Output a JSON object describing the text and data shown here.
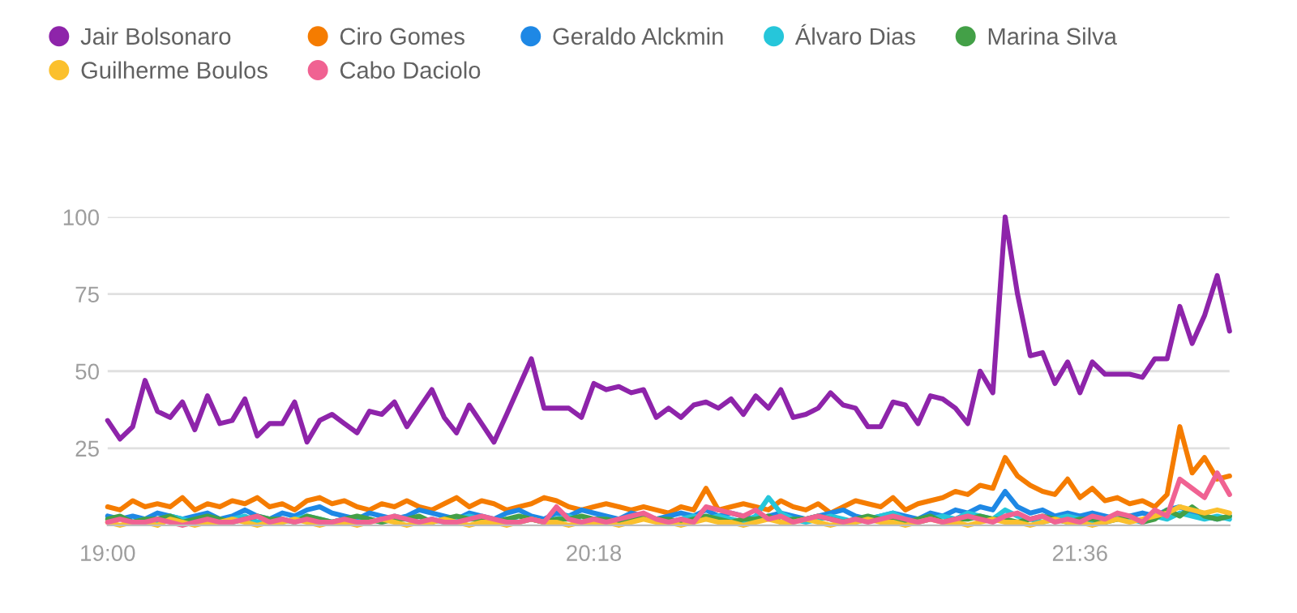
{
  "chart_data": {
    "type": "line",
    "x": [
      19,
      19.033,
      19.067,
      19.1,
      19.133,
      19.167,
      19.2,
      19.233,
      19.267,
      19.3,
      19.333,
      19.367,
      19.4,
      19.433,
      19.467,
      19.5,
      19.533,
      19.567,
      19.6,
      19.633,
      19.667,
      19.7,
      19.733,
      19.767,
      19.8,
      19.833,
      19.867,
      19.9,
      19.933,
      19.967,
      20,
      20.033,
      20.067,
      20.1,
      20.133,
      20.167,
      20.2,
      20.233,
      20.267,
      20.3,
      20.333,
      20.367,
      20.4,
      20.433,
      20.467,
      20.5,
      20.533,
      20.567,
      20.6,
      20.633,
      20.667,
      20.7,
      20.733,
      20.767,
      20.8,
      20.833,
      20.867,
      20.9,
      20.933,
      20.967,
      21,
      21.033,
      21.067,
      21.1,
      21.133,
      21.167,
      21.2,
      21.233,
      21.267,
      21.3,
      21.333,
      21.367,
      21.4,
      21.433,
      21.467,
      21.5,
      21.533,
      21.567,
      21.6,
      21.633,
      21.667,
      21.7,
      21.733,
      21.767,
      21.8,
      21.833,
      21.867,
      21.9,
      21.933,
      21.967,
      22
    ],
    "series": [
      {
        "name": "Jair Bolsonaro",
        "color": "#8e24aa",
        "values": [
          34,
          28,
          32,
          47,
          37,
          35,
          40,
          31,
          42,
          33,
          34,
          41,
          29,
          33,
          33,
          40,
          27,
          34,
          36,
          33,
          30,
          37,
          36,
          40,
          32,
          38,
          44,
          35,
          30,
          39,
          33,
          27,
          36,
          45,
          54,
          38,
          38,
          38,
          35,
          46,
          44,
          45,
          43,
          44,
          35,
          38,
          35,
          39,
          40,
          38,
          41,
          36,
          42,
          38,
          44,
          35,
          36,
          38,
          43,
          39,
          38,
          32,
          32,
          40,
          39,
          33,
          42,
          41,
          38,
          33,
          50,
          43,
          100,
          75,
          55,
          56,
          46,
          53,
          43,
          53,
          49,
          49,
          49,
          48,
          54,
          54,
          71,
          59,
          68,
          81,
          63
        ]
      },
      {
        "name": "Ciro Gomes",
        "color": "#f57c00",
        "values": [
          6,
          5,
          8,
          6,
          7,
          6,
          9,
          5,
          7,
          6,
          8,
          7,
          9,
          6,
          7,
          5,
          8,
          9,
          7,
          8,
          6,
          5,
          7,
          6,
          8,
          6,
          5,
          7,
          9,
          6,
          8,
          7,
          5,
          6,
          7,
          9,
          8,
          6,
          5,
          6,
          7,
          6,
          5,
          6,
          5,
          4,
          6,
          5,
          12,
          5,
          6,
          7,
          6,
          5,
          8,
          6,
          5,
          7,
          4,
          6,
          8,
          7,
          6,
          9,
          5,
          7,
          8,
          9,
          11,
          10,
          13,
          12,
          22,
          16,
          13,
          11,
          10,
          15,
          9,
          12,
          8,
          9,
          7,
          8,
          6,
          10,
          32,
          17,
          22,
          15,
          16
        ]
      },
      {
        "name": "Geraldo Alckmin",
        "color": "#1e88e5",
        "values": [
          3,
          2,
          3,
          2,
          4,
          3,
          2,
          3,
          4,
          2,
          3,
          5,
          3,
          2,
          4,
          3,
          5,
          6,
          4,
          3,
          2,
          4,
          3,
          2,
          3,
          5,
          4,
          3,
          2,
          4,
          3,
          2,
          4,
          5,
          3,
          2,
          4,
          3,
          5,
          4,
          3,
          2,
          4,
          3,
          2,
          3,
          4,
          3,
          5,
          3,
          4,
          3,
          2,
          3,
          4,
          3,
          2,
          3,
          4,
          5,
          3,
          2,
          3,
          4,
          3,
          2,
          4,
          3,
          5,
          4,
          6,
          5,
          11,
          6,
          4,
          5,
          3,
          4,
          3,
          4,
          3,
          2,
          3,
          4,
          3,
          5,
          6,
          4,
          3,
          2,
          3
        ]
      },
      {
        "name": "Álvaro Dias",
        "color": "#26c6da",
        "values": [
          null,
          null,
          1,
          2,
          1,
          3,
          2,
          1,
          2,
          1,
          2,
          3,
          1,
          2,
          1,
          2,
          3,
          2,
          1,
          2,
          1,
          2,
          1,
          3,
          2,
          1,
          2,
          1,
          2,
          3,
          2,
          1,
          2,
          1,
          2,
          1,
          2,
          3,
          1,
          2,
          2,
          1,
          2,
          3,
          2,
          1,
          2,
          3,
          2,
          3,
          2,
          1,
          3,
          9,
          4,
          2,
          1,
          2,
          3,
          2,
          1,
          2,
          3,
          4,
          2,
          1,
          2,
          3,
          2,
          4,
          3,
          2,
          5,
          3,
          2,
          1,
          2,
          3,
          2,
          1,
          2,
          3,
          2,
          1,
          3,
          2,
          4,
          3,
          2,
          3,
          2
        ]
      },
      {
        "name": "Marina Silva",
        "color": "#43a047",
        "values": [
          2,
          3,
          1,
          2,
          2,
          3,
          1,
          2,
          3,
          2,
          1,
          2,
          3,
          2,
          2,
          1,
          3,
          2,
          1,
          2,
          3,
          2,
          1,
          2,
          2,
          3,
          1,
          2,
          3,
          2,
          2,
          1,
          2,
          3,
          2,
          1,
          2,
          2,
          3,
          2,
          2,
          1,
          2,
          3,
          2,
          2,
          1,
          2,
          3,
          2,
          1,
          2,
          2,
          3,
          1,
          2,
          2,
          3,
          2,
          1,
          2,
          3,
          2,
          2,
          1,
          2,
          3,
          1,
          2,
          2,
          3,
          2,
          2,
          1,
          2,
          3,
          2,
          1,
          2,
          2,
          1,
          2,
          3,
          1,
          2,
          5,
          3,
          6,
          3,
          2,
          3
        ]
      },
      {
        "name": "Guilherme Boulos",
        "color": "#fbc02d",
        "values": [
          1,
          0,
          1,
          1,
          0,
          2,
          1,
          0,
          1,
          1,
          2,
          1,
          0,
          1,
          1,
          2,
          1,
          0,
          1,
          1,
          0,
          1,
          2,
          1,
          0,
          1,
          1,
          2,
          1,
          0,
          1,
          1,
          0,
          1,
          2,
          1,
          1,
          0,
          1,
          1,
          1,
          0,
          1,
          2,
          1,
          1,
          0,
          1,
          2,
          1,
          1,
          0,
          1,
          2,
          1,
          1,
          2,
          1,
          0,
          1,
          1,
          2,
          1,
          1,
          0,
          1,
          2,
          1,
          1,
          0,
          1,
          2,
          1,
          1,
          0,
          1,
          2,
          1,
          1,
          0,
          1,
          2,
          1,
          2,
          3,
          4,
          6,
          5,
          4,
          5,
          4
        ]
      },
      {
        "name": "Cabo Daciolo",
        "color": "#f06292",
        "values": [
          1,
          2,
          1,
          1,
          2,
          1,
          0,
          1,
          2,
          1,
          1,
          2,
          3,
          1,
          2,
          1,
          2,
          1,
          1,
          2,
          1,
          1,
          2,
          3,
          2,
          1,
          2,
          1,
          1,
          2,
          3,
          2,
          1,
          1,
          2,
          1,
          6,
          2,
          1,
          2,
          1,
          2,
          3,
          4,
          2,
          1,
          2,
          1,
          6,
          5,
          4,
          3,
          5,
          2,
          3,
          1,
          2,
          3,
          2,
          1,
          2,
          1,
          2,
          3,
          2,
          1,
          2,
          1,
          2,
          3,
          2,
          1,
          3,
          4,
          2,
          3,
          1,
          2,
          1,
          3,
          2,
          4,
          3,
          1,
          5,
          3,
          15,
          12,
          9,
          17,
          10
        ]
      }
    ],
    "xlim": [
      19,
      22
    ],
    "xticks": [
      {
        "value": 19,
        "label": "19:00"
      },
      {
        "value": 20.3,
        "label": "20:18"
      },
      {
        "value": 21.6,
        "label": "21:36"
      }
    ],
    "ylim": [
      0,
      100
    ],
    "yticks": [
      25,
      50,
      75,
      100
    ],
    "grid": "y",
    "legend": "top left",
    "marker": "none",
    "line_style": "solid"
  }
}
